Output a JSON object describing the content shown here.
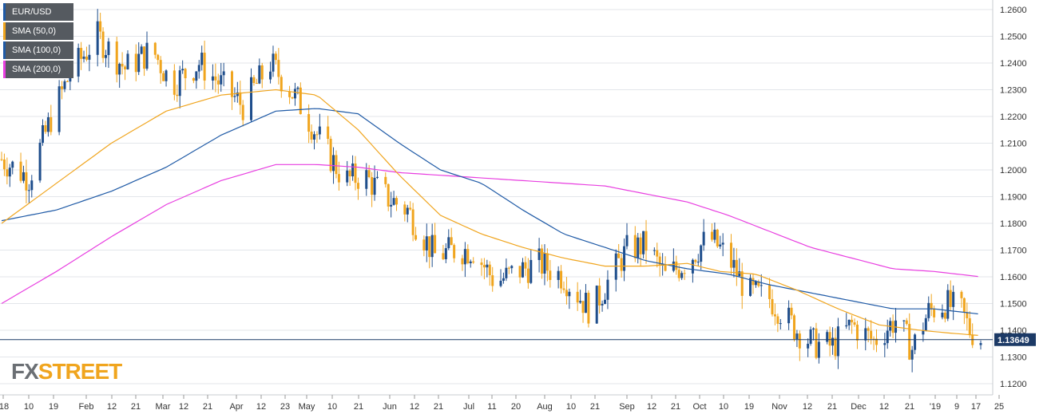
{
  "chart_data": {
    "type": "candlestick",
    "symbol": "EUR/USD",
    "ylim": [
      1.115,
      1.265
    ],
    "y_ticks": [
      "1.2600",
      "1.2500",
      "1.2400",
      "1.2300",
      "1.2200",
      "1.2100",
      "1.2000",
      "1.1900",
      "1.1800",
      "1.1700",
      "1.1600",
      "1.1500",
      "1.1400",
      "1.1300",
      "1.1200"
    ],
    "x_ticks": [
      "'18",
      "10",
      "19",
      "Feb",
      "12",
      "21",
      "Mar",
      "12",
      "21",
      "Apr",
      "12",
      "23",
      "May",
      "10",
      "21",
      "Jun",
      "12",
      "21",
      "Jul",
      "11",
      "20",
      "Aug",
      "10",
      "21",
      "Sep",
      "12",
      "21",
      "Oct",
      "10",
      "19",
      "Nov",
      "12",
      "21",
      "Dec",
      "12",
      "21",
      "'19",
      "9",
      "17",
      "25"
    ],
    "current_price": "1.13649",
    "series": [
      {
        "name": "EUR/USD",
        "up_color": "#1f4e8c",
        "down_color": "#f0a51e"
      },
      {
        "name": "SMA (50,0)",
        "color": "#f0a51e"
      },
      {
        "name": "SMA (100,0)",
        "color": "#1f5aa6"
      },
      {
        "name": "SMA (200,0)",
        "color": "#e83ee0"
      }
    ],
    "close_path": [
      [
        0,
        1.204
      ],
      [
        10,
        1.197
      ],
      [
        19,
        1.222
      ],
      [
        25,
        1.236
      ],
      [
        35,
        1.25
      ],
      [
        45,
        1.238
      ],
      [
        55,
        1.245
      ],
      [
        62,
        1.232
      ],
      [
        72,
        1.24
      ],
      [
        82,
        1.23
      ],
      [
        88,
        1.224
      ],
      [
        98,
        1.24
      ],
      [
        108,
        1.226
      ],
      [
        118,
        1.208
      ],
      [
        125,
        1.196
      ],
      [
        132,
        1.198
      ],
      [
        140,
        1.19
      ],
      [
        148,
        1.185
      ],
      [
        158,
        1.168
      ],
      [
        165,
        1.17
      ],
      [
        172,
        1.17
      ],
      [
        180,
        1.158
      ],
      [
        188,
        1.162
      ],
      [
        196,
        1.165
      ],
      [
        205,
        1.16
      ],
      [
        215,
        1.147
      ],
      [
        222,
        1.16
      ],
      [
        228,
        1.17
      ],
      [
        235,
        1.172
      ],
      [
        242,
        1.16
      ],
      [
        250,
        1.166
      ],
      [
        258,
        1.175
      ],
      [
        265,
        1.167
      ],
      [
        272,
        1.154
      ],
      [
        280,
        1.152
      ],
      [
        290,
        1.14
      ],
      [
        296,
        1.135
      ],
      [
        303,
        1.134
      ],
      [
        310,
        1.142
      ],
      [
        318,
        1.136
      ],
      [
        326,
        1.144
      ],
      [
        332,
        1.133
      ],
      [
        338,
        1.147
      ],
      [
        344,
        1.15
      ],
      [
        350,
        1.147
      ],
      [
        353,
        1.14
      ],
      [
        357,
        1.137
      ]
    ],
    "sma50": [
      [
        0,
        1.18
      ],
      [
        20,
        1.195
      ],
      [
        40,
        1.21
      ],
      [
        60,
        1.222
      ],
      [
        80,
        1.228
      ],
      [
        100,
        1.23
      ],
      [
        115,
        1.228
      ],
      [
        130,
        1.215
      ],
      [
        145,
        1.198
      ],
      [
        160,
        1.183
      ],
      [
        175,
        1.176
      ],
      [
        190,
        1.171
      ],
      [
        205,
        1.167
      ],
      [
        220,
        1.164
      ],
      [
        235,
        1.164
      ],
      [
        250,
        1.165
      ],
      [
        262,
        1.162
      ],
      [
        275,
        1.161
      ],
      [
        290,
        1.155
      ],
      [
        305,
        1.148
      ],
      [
        320,
        1.142
      ],
      [
        335,
        1.14
      ],
      [
        345,
        1.139
      ],
      [
        357,
        1.138
      ]
    ],
    "sma100": [
      [
        0,
        1.181
      ],
      [
        20,
        1.185
      ],
      [
        40,
        1.192
      ],
      [
        60,
        1.201
      ],
      [
        80,
        1.213
      ],
      [
        100,
        1.222
      ],
      [
        115,
        1.223
      ],
      [
        130,
        1.221
      ],
      [
        145,
        1.21
      ],
      [
        160,
        1.2
      ],
      [
        175,
        1.195
      ],
      [
        190,
        1.185
      ],
      [
        205,
        1.176
      ],
      [
        220,
        1.171
      ],
      [
        235,
        1.166
      ],
      [
        250,
        1.163
      ],
      [
        265,
        1.161
      ],
      [
        280,
        1.157
      ],
      [
        295,
        1.154
      ],
      [
        310,
        1.151
      ],
      [
        325,
        1.148
      ],
      [
        340,
        1.148
      ],
      [
        357,
        1.146
      ]
    ],
    "sma200": [
      [
        0,
        1.15
      ],
      [
        20,
        1.162
      ],
      [
        40,
        1.175
      ],
      [
        60,
        1.187
      ],
      [
        80,
        1.196
      ],
      [
        100,
        1.202
      ],
      [
        115,
        1.202
      ],
      [
        130,
        1.201
      ],
      [
        145,
        1.199
      ],
      [
        160,
        1.198
      ],
      [
        175,
        1.197
      ],
      [
        190,
        1.196
      ],
      [
        205,
        1.195
      ],
      [
        220,
        1.194
      ],
      [
        235,
        1.191
      ],
      [
        250,
        1.188
      ],
      [
        265,
        1.183
      ],
      [
        280,
        1.177
      ],
      [
        295,
        1.171
      ],
      [
        310,
        1.167
      ],
      [
        325,
        1.163
      ],
      [
        340,
        1.162
      ],
      [
        357,
        1.16
      ]
    ]
  },
  "legend": [
    {
      "label": "EUR/USD",
      "color": "#1f5aa6"
    },
    {
      "label": "SMA (50,0)",
      "color": "#f0a51e"
    },
    {
      "label": "SMA (100,0)",
      "color": "#1f5aa6"
    },
    {
      "label": "SMA (200,0)",
      "color": "#e83ee0"
    }
  ],
  "logo": {
    "fx": "FX",
    "street": "STREET"
  }
}
